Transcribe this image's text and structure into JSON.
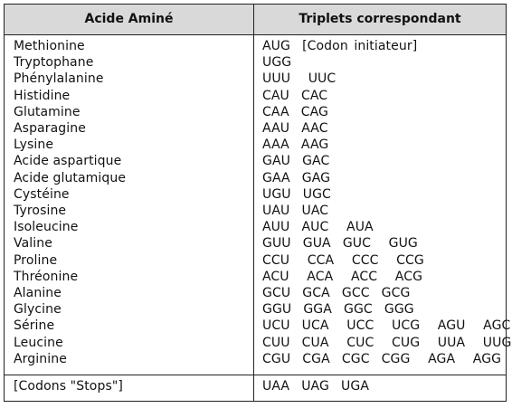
{
  "headers": {
    "amino": "Acide Aminé",
    "triplets": "Triplets correspondant"
  },
  "rows": [
    {
      "amino": "Methionine",
      "codons": "AUG  [Codon initiateur]"
    },
    {
      "amino": "Tryptophane",
      "codons": "UGG"
    },
    {
      "amino": "Phénylalanine",
      "codons": "UUU   UUC"
    },
    {
      "amino": "Histidine",
      "codons": "CAU  CAC"
    },
    {
      "amino": "Glutamine",
      "codons": "CAA  CAG"
    },
    {
      "amino": "Asparagine",
      "codons": "AAU  AAC"
    },
    {
      "amino": "Lysine",
      "codons": "AAA  AAG"
    },
    {
      "amino": "Acide aspartique",
      "codons": "GAU  GAC"
    },
    {
      "amino": "Acide glutamique",
      "codons": "GAA  GAG"
    },
    {
      "amino": "Cystéine",
      "codons": "UGU  UGC"
    },
    {
      "amino": "Tyrosine",
      "codons": "UAU  UAC"
    },
    {
      "amino": "Isoleucine",
      "codons": "AUU  AUC   AUA"
    },
    {
      "amino": "Valine",
      "codons": "GUU  GUA  GUC   GUG"
    },
    {
      "amino": "Proline",
      "codons": "CCU   CCA   CCC   CCG"
    },
    {
      "amino": "Thréonine",
      "codons": "ACU   ACA   ACC   ACG"
    },
    {
      "amino": "Alanine",
      "codons": "GCU  GCA  GCC  GCG"
    },
    {
      "amino": "Glycine",
      "codons": "GGU  GGA  GGC  GGG"
    },
    {
      "amino": "Sérine",
      "codons": "UCU  UCA   UCC   UCG   AGU   AGC"
    },
    {
      "amino": "Leucine",
      "codons": "CUU  CUA   CUC   CUG   UUA   UUG"
    },
    {
      "amino": "Arginine",
      "codons": "CGU  CGA  CGC  CGG   AGA   AGG"
    }
  ],
  "stops": {
    "label": "[Codons \"Stops\"]",
    "codons": "UAA  UAG  UGA"
  }
}
